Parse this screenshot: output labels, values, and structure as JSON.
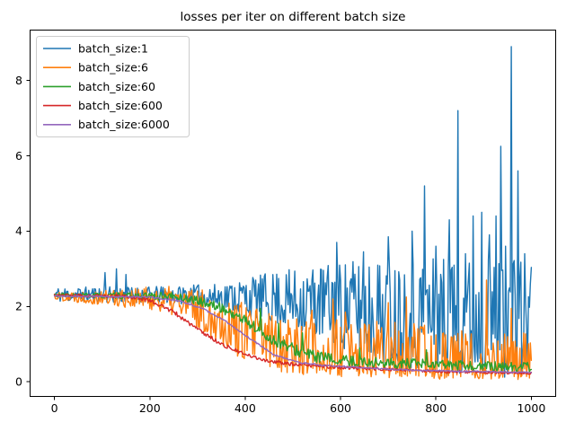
{
  "figure": {
    "background": "#ffffff"
  },
  "chart_data": {
    "type": "line",
    "title": "losses per iter on different batch size",
    "xlabel": "",
    "ylabel": "",
    "x_range": [
      0,
      1000
    ],
    "xlim": [
      -52,
      1052
    ],
    "ylim": [
      -0.4,
      9.35
    ],
    "xticks": [
      0,
      200,
      400,
      600,
      800,
      1000
    ],
    "yticks": [
      0,
      2,
      4,
      6,
      8
    ],
    "grid": false,
    "legend_position": "upper left",
    "point_step": 2,
    "description": "Training loss vs iteration (0-1000) for five batch sizes; smaller batch sizes are noisier. Series encoded as trend keypoints + noise envelope + explicit spike points.",
    "series": [
      {
        "name": "batch_size:1",
        "color": "#1f77b4",
        "seed": 11,
        "shape": 0.75,
        "floor": 0.1,
        "trend": [
          [
            0,
            2.3
          ],
          [
            300,
            2.28
          ],
          [
            450,
            2.2
          ],
          [
            550,
            2.1
          ],
          [
            700,
            1.85
          ],
          [
            850,
            1.7
          ],
          [
            1000,
            1.6
          ]
        ],
        "noise_up": [
          [
            0,
            0.22
          ],
          [
            250,
            0.25
          ],
          [
            350,
            0.35
          ],
          [
            450,
            0.7
          ],
          [
            550,
            1.0
          ],
          [
            650,
            1.35
          ],
          [
            800,
            1.6
          ],
          [
            1000,
            1.7
          ]
        ],
        "noise_down": [
          [
            0,
            0.18
          ],
          [
            250,
            0.2
          ],
          [
            350,
            0.3
          ],
          [
            450,
            0.65
          ],
          [
            550,
            0.95
          ],
          [
            650,
            1.3
          ],
          [
            800,
            1.55
          ],
          [
            1000,
            1.5
          ]
        ],
        "spikes": [
          [
            105,
            2.9
          ],
          [
            130,
            3.0
          ],
          [
            150,
            2.85
          ],
          [
            592,
            3.7
          ],
          [
            648,
            3.45
          ],
          [
            700,
            3.85
          ],
          [
            750,
            4.0
          ],
          [
            776,
            5.2
          ],
          [
            800,
            3.6
          ],
          [
            828,
            4.3
          ],
          [
            845,
            7.2
          ],
          [
            862,
            3.4
          ],
          [
            878,
            4.4
          ],
          [
            895,
            4.5
          ],
          [
            912,
            3.9
          ],
          [
            925,
            4.4
          ],
          [
            936,
            6.25
          ],
          [
            945,
            3.6
          ],
          [
            958,
            8.9
          ],
          [
            972,
            5.6
          ],
          [
            985,
            3.4
          ],
          [
            997,
            2.6
          ]
        ]
      },
      {
        "name": "batch_size:6",
        "color": "#ff7f0e",
        "seed": 22,
        "shape": 0.75,
        "floor": 0.06,
        "trend": [
          [
            0,
            2.27
          ],
          [
            220,
            2.18
          ],
          [
            280,
            2.0
          ],
          [
            340,
            1.65
          ],
          [
            420,
            1.1
          ],
          [
            500,
            0.8
          ],
          [
            600,
            0.55
          ],
          [
            800,
            0.45
          ],
          [
            1000,
            0.38
          ]
        ],
        "noise_up": [
          [
            0,
            0.12
          ],
          [
            220,
            0.35
          ],
          [
            300,
            0.6
          ],
          [
            400,
            0.85
          ],
          [
            500,
            1.1
          ],
          [
            650,
            1.15
          ],
          [
            1000,
            0.9
          ]
        ],
        "noise_down": [
          [
            0,
            0.1
          ],
          [
            220,
            0.3
          ],
          [
            300,
            0.5
          ],
          [
            400,
            0.7
          ],
          [
            500,
            0.6
          ],
          [
            650,
            0.42
          ],
          [
            1000,
            0.33
          ]
        ],
        "spikes": [
          [
            540,
            1.9
          ],
          [
            583,
            2.2
          ],
          [
            610,
            1.85
          ],
          [
            700,
            2.1
          ],
          [
            737,
            2.25
          ],
          [
            905,
            2.7
          ],
          [
            958,
            1.95
          ]
        ]
      },
      {
        "name": "batch_size:60",
        "color": "#2ca02c",
        "seed": 33,
        "shape": 1,
        "floor": 0.12,
        "trend": [
          [
            0,
            2.3
          ],
          [
            250,
            2.26
          ],
          [
            300,
            2.15
          ],
          [
            350,
            1.95
          ],
          [
            400,
            1.62
          ],
          [
            450,
            1.15
          ],
          [
            500,
            0.85
          ],
          [
            550,
            0.65
          ],
          [
            600,
            0.55
          ],
          [
            700,
            0.48
          ],
          [
            800,
            0.44
          ],
          [
            900,
            0.4
          ],
          [
            1000,
            0.38
          ]
        ],
        "noise_up": [
          [
            0,
            0.06
          ],
          [
            300,
            0.12
          ],
          [
            430,
            0.2
          ],
          [
            600,
            0.16
          ],
          [
            1000,
            0.14
          ]
        ],
        "noise_down": [
          [
            0,
            0.05
          ],
          [
            300,
            0.1
          ],
          [
            430,
            0.15
          ],
          [
            600,
            0.13
          ],
          [
            1000,
            0.12
          ]
        ],
        "spikes": [
          [
            432,
            1.95
          ],
          [
            470,
            1.55
          ],
          [
            520,
            1.3
          ],
          [
            640,
            0.9
          ],
          [
            780,
            0.85
          ]
        ]
      },
      {
        "name": "batch_size:600",
        "color": "#d62728",
        "seed": 44,
        "shape": 1,
        "floor": 0.14,
        "trend": [
          [
            0,
            2.3
          ],
          [
            150,
            2.27
          ],
          [
            200,
            2.17
          ],
          [
            250,
            1.85
          ],
          [
            300,
            1.4
          ],
          [
            350,
            1.0
          ],
          [
            400,
            0.72
          ],
          [
            450,
            0.55
          ],
          [
            500,
            0.46
          ],
          [
            600,
            0.38
          ],
          [
            700,
            0.33
          ],
          [
            800,
            0.28
          ],
          [
            900,
            0.25
          ],
          [
            1000,
            0.23
          ]
        ],
        "noise_up": [
          [
            0,
            0.035
          ],
          [
            250,
            0.06
          ],
          [
            400,
            0.05
          ],
          [
            1000,
            0.03
          ]
        ],
        "noise_down": [
          [
            0,
            0.035
          ],
          [
            250,
            0.06
          ],
          [
            400,
            0.05
          ],
          [
            1000,
            0.03
          ]
        ],
        "spikes": []
      },
      {
        "name": "batch_size:6000",
        "color": "#9467bd",
        "seed": 55,
        "shape": 1,
        "floor": 0.15,
        "trend": [
          [
            0,
            2.28
          ],
          [
            200,
            2.25
          ],
          [
            260,
            2.15
          ],
          [
            310,
            1.95
          ],
          [
            360,
            1.6
          ],
          [
            410,
            1.15
          ],
          [
            460,
            0.72
          ],
          [
            510,
            0.52
          ],
          [
            560,
            0.44
          ],
          [
            650,
            0.37
          ],
          [
            750,
            0.31
          ],
          [
            850,
            0.28
          ],
          [
            1000,
            0.25
          ]
        ],
        "noise_up": [
          [
            0,
            0.02
          ],
          [
            1000,
            0.02
          ]
        ],
        "noise_down": [
          [
            0,
            0.02
          ],
          [
            1000,
            0.02
          ]
        ],
        "spikes": []
      }
    ]
  }
}
